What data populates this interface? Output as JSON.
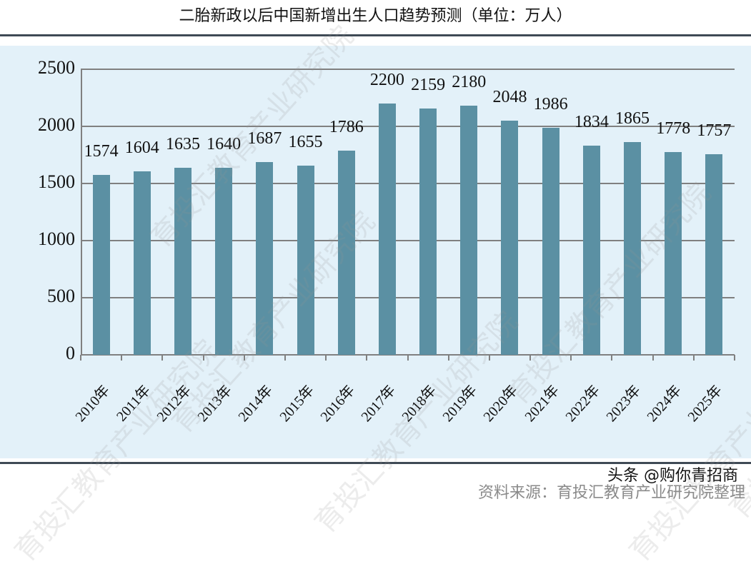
{
  "chart_data": {
    "type": "bar",
    "title": "二胎新政以后中国新增出生人口趋势预测（单位：万人）",
    "xlabel": "",
    "ylabel": "",
    "ylim": [
      0,
      2500
    ],
    "yticks": [
      0,
      500,
      1000,
      1500,
      2000,
      2500
    ],
    "grid": true,
    "legend": null,
    "categories": [
      "2010年",
      "2011年",
      "2012年",
      "2013年",
      "2014年",
      "2015年",
      "2016年",
      "2017年",
      "2018年",
      "2019年",
      "2020年",
      "2021年",
      "2022年",
      "2023年",
      "2024年",
      "2025年"
    ],
    "values": [
      1574,
      1604,
      1635,
      1640,
      1687,
      1655,
      1786,
      2200,
      2159,
      2180,
      2048,
      1986,
      1834,
      1865,
      1778,
      1757
    ],
    "bar_color": "#5b90a3",
    "background_color": "#e3f1f9"
  },
  "header": {
    "title": "二胎新政以后中国新增出生人口趋势预测（单位：万人）"
  },
  "footer": {
    "credit": "头条 @购你青招商",
    "source": "资料来源：育投汇教育产业研究院整理"
  },
  "watermark": {
    "text": "育投汇教育产业研究院"
  }
}
